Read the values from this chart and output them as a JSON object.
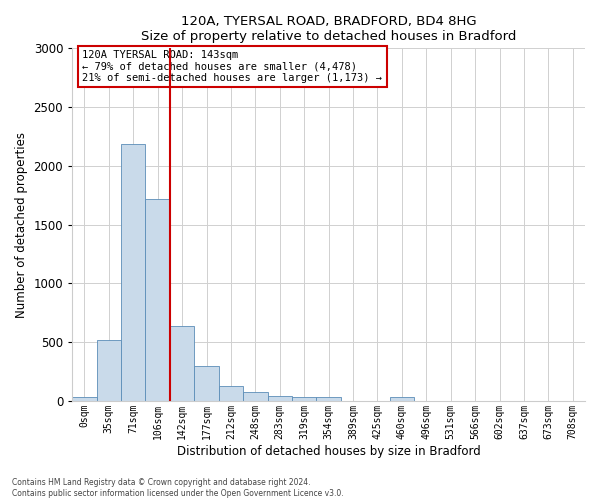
{
  "title": "120A, TYERSAL ROAD, BRADFORD, BD4 8HG",
  "subtitle": "Size of property relative to detached houses in Bradford",
  "xlabel": "Distribution of detached houses by size in Bradford",
  "ylabel": "Number of detached properties",
  "bar_color": "#c9daea",
  "bar_edge_color": "#5b8db8",
  "categories": [
    "0sqm",
    "35sqm",
    "71sqm",
    "106sqm",
    "142sqm",
    "177sqm",
    "212sqm",
    "248sqm",
    "283sqm",
    "319sqm",
    "354sqm",
    "389sqm",
    "425sqm",
    "460sqm",
    "496sqm",
    "531sqm",
    "566sqm",
    "602sqm",
    "637sqm",
    "673sqm",
    "708sqm"
  ],
  "values": [
    30,
    520,
    2190,
    1720,
    635,
    295,
    130,
    75,
    45,
    35,
    35,
    0,
    0,
    30,
    0,
    0,
    0,
    0,
    0,
    0,
    0
  ],
  "ylim": [
    0,
    3000
  ],
  "yticks": [
    0,
    500,
    1000,
    1500,
    2000,
    2500,
    3000
  ],
  "property_line_x": 3.5,
  "property_line_color": "#cc0000",
  "annotation_title": "120A TYERSAL ROAD: 143sqm",
  "annotation_line1": "← 79% of detached houses are smaller (4,478)",
  "annotation_line2": "21% of semi-detached houses are larger (1,173) →",
  "annotation_box_color": "#ffffff",
  "annotation_box_edge": "#cc0000",
  "footer1": "Contains HM Land Registry data © Crown copyright and database right 2024.",
  "footer2": "Contains public sector information licensed under the Open Government Licence v3.0."
}
